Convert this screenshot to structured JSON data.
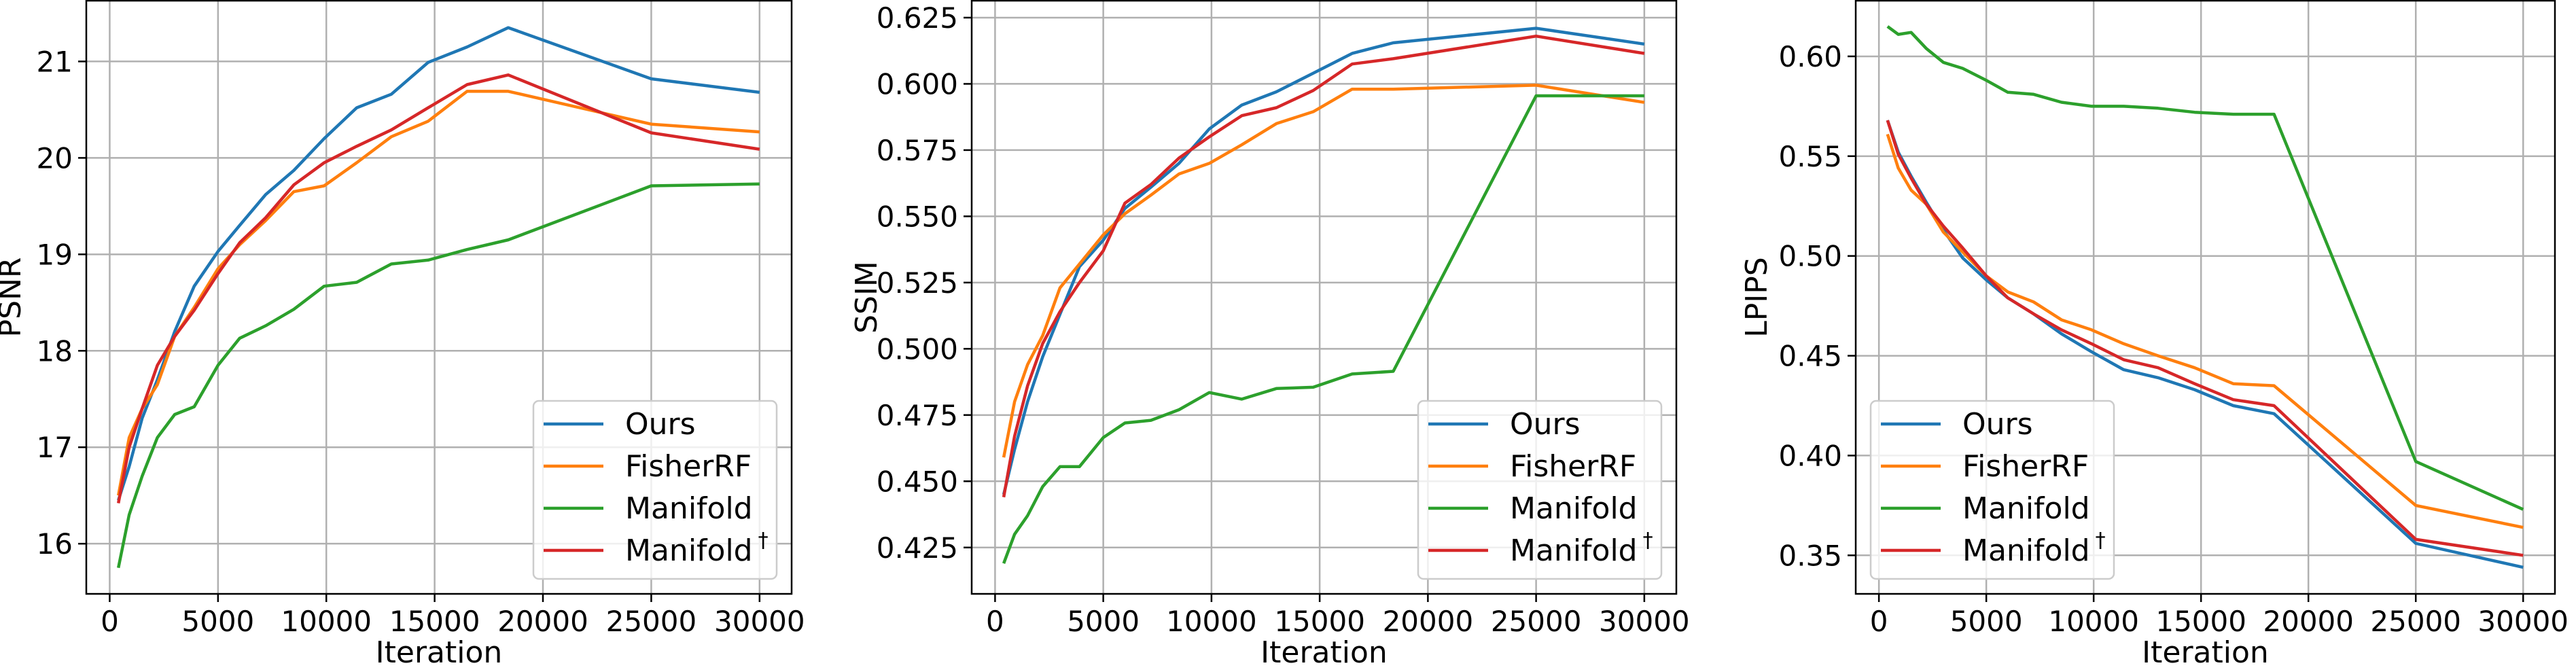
{
  "chart_data": [
    {
      "type": "line",
      "xlabel": "Iteration",
      "ylabel": "PSNR",
      "xlim": [
        -1080,
        31480
      ],
      "ylim": [
        15.48,
        21.63
      ],
      "xticks": [
        0,
        5000,
        10000,
        15000,
        20000,
        25000,
        30000
      ],
      "yticks": [
        16,
        17,
        18,
        19,
        20,
        21
      ],
      "grid": true,
      "legend": "lower-right",
      "x": [
        400,
        900,
        1500,
        2200,
        3000,
        3900,
        5000,
        6000,
        7200,
        8500,
        9900,
        11400,
        13000,
        14700,
        16500,
        18400,
        25000,
        30000
      ],
      "series": [
        {
          "name": "Ours",
          "color": "#1f77b4",
          "values": [
            16.45,
            16.8,
            17.3,
            17.7,
            18.2,
            18.67,
            19.03,
            19.3,
            19.62,
            19.87,
            20.2,
            20.52,
            20.66,
            20.99,
            21.15,
            21.35,
            20.82,
            20.68
          ]
        },
        {
          "name": "FisherRF",
          "color": "#ff7f0e",
          "values": [
            16.5,
            17.1,
            17.4,
            17.65,
            18.15,
            18.45,
            18.85,
            19.1,
            19.35,
            19.65,
            19.71,
            19.95,
            20.22,
            20.38,
            20.69,
            20.69,
            20.35,
            20.27
          ]
        },
        {
          "name": "Manifold",
          "color": "#2ca02c",
          "values": [
            15.75,
            16.3,
            16.7,
            17.1,
            17.34,
            17.42,
            17.85,
            18.13,
            18.26,
            18.43,
            18.67,
            18.71,
            18.9,
            18.94,
            19.05,
            19.15,
            19.71,
            19.73
          ]
        },
        {
          "name": "Manifold",
          "superscript": "†",
          "color": "#d62728",
          "values": [
            16.42,
            17.0,
            17.4,
            17.85,
            18.15,
            18.42,
            18.8,
            19.12,
            19.38,
            19.72,
            19.95,
            20.12,
            20.29,
            20.52,
            20.76,
            20.86,
            20.26,
            20.09
          ]
        }
      ]
    },
    {
      "type": "line",
      "xlabel": "Iteration",
      "ylabel": "SSIM",
      "xlim": [
        -1080,
        31480
      ],
      "ylim": [
        0.4075,
        0.6314
      ],
      "xticks": [
        0,
        5000,
        10000,
        15000,
        20000,
        25000,
        30000
      ],
      "yticks": [
        0.425,
        0.45,
        0.475,
        0.5,
        0.525,
        0.55,
        0.575,
        0.6,
        0.625
      ],
      "ytick_decimals": 3,
      "grid": true,
      "legend": "lower-right",
      "x": [
        400,
        900,
        1500,
        2200,
        3000,
        3900,
        5000,
        6000,
        7200,
        8500,
        9900,
        11400,
        13000,
        14700,
        16500,
        18400,
        25000,
        30000
      ],
      "series": [
        {
          "name": "Ours",
          "color": "#1f77b4",
          "values": [
            0.445,
            0.462,
            0.48,
            0.497,
            0.513,
            0.531,
            0.541,
            0.553,
            0.561,
            0.57,
            0.583,
            0.592,
            0.597,
            0.604,
            0.6115,
            0.6155,
            0.621,
            0.615
          ]
        },
        {
          "name": "FisherRF",
          "color": "#ff7f0e",
          "values": [
            0.459,
            0.48,
            0.494,
            0.505,
            0.523,
            0.532,
            0.543,
            0.551,
            0.558,
            0.566,
            0.57,
            0.577,
            0.585,
            0.5895,
            0.598,
            0.598,
            0.5995,
            0.593
          ]
        },
        {
          "name": "Manifold",
          "color": "#2ca02c",
          "values": [
            0.419,
            0.43,
            0.437,
            0.448,
            0.4555,
            0.4555,
            0.4665,
            0.472,
            0.473,
            0.477,
            0.4835,
            0.481,
            0.485,
            0.4855,
            0.4905,
            0.4915,
            0.5955,
            0.5955
          ]
        },
        {
          "name": "Manifold",
          "superscript": "†",
          "color": "#d62728",
          "values": [
            0.444,
            0.467,
            0.486,
            0.502,
            0.514,
            0.525,
            0.537,
            0.555,
            0.562,
            0.572,
            0.58,
            0.588,
            0.591,
            0.5975,
            0.6075,
            0.6095,
            0.618,
            0.6115
          ]
        }
      ]
    },
    {
      "type": "line",
      "xlabel": "Iteration",
      "ylabel": "LPIPS",
      "xlim": [
        -1080,
        31480
      ],
      "ylim": [
        0.3307,
        0.6279
      ],
      "xticks": [
        0,
        5000,
        10000,
        15000,
        20000,
        25000,
        30000
      ],
      "yticks": [
        0.35,
        0.4,
        0.45,
        0.5,
        0.55,
        0.6
      ],
      "ytick_decimals": 2,
      "grid": true,
      "legend": "lower-left",
      "x": [
        400,
        900,
        1500,
        2200,
        3000,
        3900,
        5000,
        6000,
        7200,
        8500,
        9900,
        11400,
        13000,
        14700,
        16500,
        18400,
        25000,
        30000
      ],
      "series": [
        {
          "name": "Ours",
          "color": "#1f77b4",
          "values": [
            0.568,
            0.552,
            0.54,
            0.527,
            0.513,
            0.499,
            0.488,
            0.479,
            0.471,
            0.461,
            0.452,
            0.443,
            0.439,
            0.433,
            0.425,
            0.421,
            0.356,
            0.344
          ]
        },
        {
          "name": "FisherRF",
          "color": "#ff7f0e",
          "values": [
            0.561,
            0.544,
            0.533,
            0.526,
            0.512,
            0.502,
            0.49,
            0.482,
            0.477,
            0.468,
            0.463,
            0.456,
            0.45,
            0.444,
            0.436,
            0.435,
            0.375,
            0.364
          ]
        },
        {
          "name": "Manifold",
          "color": "#2ca02c",
          "values": [
            0.615,
            0.611,
            0.612,
            0.604,
            0.597,
            0.594,
            0.588,
            0.582,
            0.581,
            0.577,
            0.575,
            0.575,
            0.574,
            0.572,
            0.571,
            0.571,
            0.397,
            0.373
          ]
        },
        {
          "name": "Manifold",
          "superscript": "†",
          "color": "#d62728",
          "values": [
            0.568,
            0.551,
            0.539,
            0.526,
            0.515,
            0.504,
            0.49,
            0.479,
            0.471,
            0.463,
            0.456,
            0.448,
            0.444,
            0.436,
            0.428,
            0.425,
            0.358,
            0.35
          ]
        }
      ]
    }
  ]
}
